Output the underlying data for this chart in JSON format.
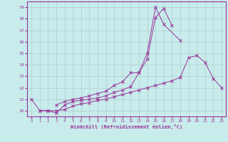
{
  "xlabel": "Windchill (Refroidissement éolien,°C)",
  "bg_color": "#c8ecec",
  "grid_color": "#b0cccc",
  "line_color": "#993399",
  "xlim": [
    -0.5,
    23.5
  ],
  "ylim": [
    9.5,
    19.5
  ],
  "xticks": [
    0,
    1,
    2,
    3,
    4,
    5,
    6,
    7,
    8,
    9,
    10,
    11,
    12,
    13,
    14,
    15,
    16,
    17,
    18,
    19,
    20,
    21,
    22,
    23
  ],
  "yticks": [
    10,
    11,
    12,
    13,
    14,
    15,
    16,
    17,
    18,
    19
  ],
  "curves": [
    {
      "x": [
        0,
        1,
        2,
        3,
        4,
        5,
        6,
        7,
        8,
        9,
        10,
        11,
        12,
        13,
        14,
        15,
        16,
        17
      ],
      "y": [
        11,
        10,
        10,
        9.8,
        10.5,
        10.8,
        10.9,
        11.0,
        11.1,
        11.3,
        11.6,
        11.8,
        12.1,
        13.3,
        14.5,
        18.1,
        18.9,
        17.4
      ]
    },
    {
      "x": [
        3,
        4,
        5,
        6,
        7,
        8,
        9,
        10,
        11,
        12,
        13,
        14,
        15,
        16,
        17,
        18
      ],
      "y": [
        10.5,
        10.8,
        11.0,
        11.1,
        11.3,
        11.5,
        11.7,
        12.2,
        12.5,
        13.3,
        13.3,
        15.0,
        19.0,
        17.5,
        null,
        16.1
      ]
    },
    {
      "x": [
        1,
        2,
        3,
        4,
        5,
        6,
        7,
        8,
        9,
        10,
        11,
        12,
        13,
        14,
        15,
        16,
        17,
        18,
        19,
        20,
        21,
        22,
        23
      ],
      "y": [
        10,
        10,
        10,
        10.1,
        10.4,
        10.6,
        10.7,
        10.9,
        11.0,
        11.2,
        11.4,
        11.6,
        11.8,
        12.0,
        12.2,
        12.4,
        12.6,
        12.9,
        14.6,
        14.8,
        14.2,
        12.8,
        12.0
      ]
    }
  ]
}
